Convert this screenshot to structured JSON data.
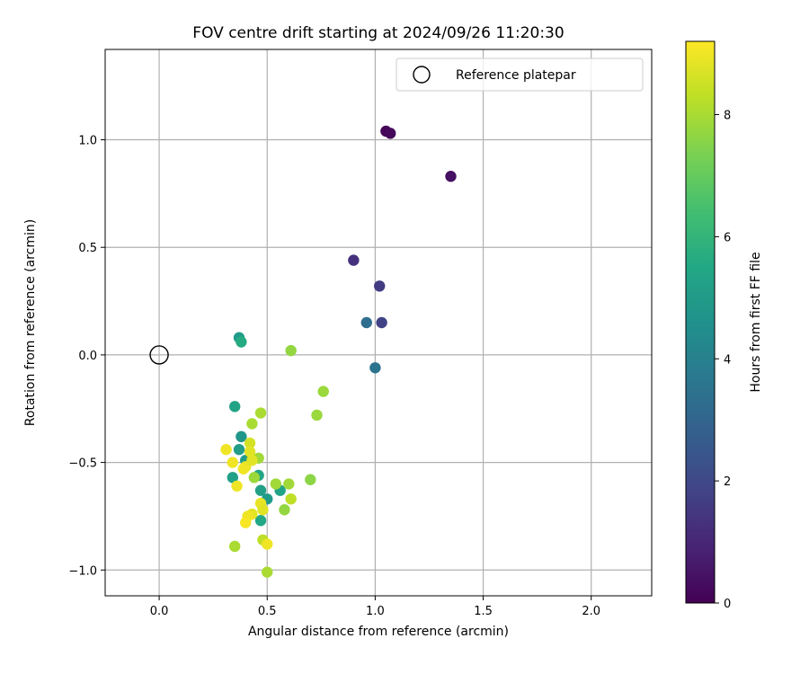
{
  "chart_data": {
    "type": "scatter",
    "title": "FOV centre drift starting at 2024/09/26 11:20:30",
    "xlabel": "Angular distance from reference (arcmin)",
    "ylabel": "Rotation from reference (arcmin)",
    "xlim": [
      -0.25,
      2.28
    ],
    "ylim": [
      -1.12,
      1.42
    ],
    "xticks": [
      0.0,
      0.5,
      1.0,
      1.5,
      2.0
    ],
    "xtick_labels": [
      "0.0",
      "0.5",
      "1.0",
      "1.5",
      "2.0"
    ],
    "yticks": [
      -1.0,
      -0.5,
      0.0,
      0.5,
      1.0
    ],
    "ytick_labels": [
      "−1.0",
      "−0.5",
      "0.0",
      "0.5",
      "1.0"
    ],
    "grid": true,
    "legend": {
      "position": "top-right",
      "entries": [
        "Reference platepar"
      ]
    },
    "reference_point": {
      "x": 0.0,
      "y": 0.0,
      "label": "Reference platepar"
    },
    "colorbar": {
      "label": "Hours from first FF file",
      "colormap": "viridis",
      "range": [
        0,
        9.2
      ],
      "ticks": [
        0,
        2,
        4,
        6,
        8
      ],
      "tick_labels": [
        "0",
        "2",
        "4",
        "6",
        "8"
      ]
    },
    "points": [
      {
        "x": 1.05,
        "y": 1.04,
        "hours": 0.1
      },
      {
        "x": 1.07,
        "y": 1.03,
        "hours": 0.2
      },
      {
        "x": 1.35,
        "y": 0.83,
        "hours": 0.4
      },
      {
        "x": 0.9,
        "y": 0.44,
        "hours": 1.3
      },
      {
        "x": 1.02,
        "y": 0.32,
        "hours": 1.6
      },
      {
        "x": 1.03,
        "y": 0.15,
        "hours": 1.8
      },
      {
        "x": 0.96,
        "y": 0.15,
        "hours": 3.3
      },
      {
        "x": 1.0,
        "y": -0.06,
        "hours": 3.5
      },
      {
        "x": 0.37,
        "y": 0.08,
        "hours": 5.0
      },
      {
        "x": 0.38,
        "y": 0.06,
        "hours": 5.6
      },
      {
        "x": 0.35,
        "y": -0.24,
        "hours": 5.3
      },
      {
        "x": 0.38,
        "y": -0.38,
        "hours": 4.8
      },
      {
        "x": 0.37,
        "y": -0.44,
        "hours": 5.1
      },
      {
        "x": 0.4,
        "y": -0.49,
        "hours": 5.0
      },
      {
        "x": 0.46,
        "y": -0.56,
        "hours": 5.4
      },
      {
        "x": 0.34,
        "y": -0.57,
        "hours": 5.2
      },
      {
        "x": 0.47,
        "y": -0.63,
        "hours": 5.2
      },
      {
        "x": 0.5,
        "y": -0.67,
        "hours": 5.0
      },
      {
        "x": 0.56,
        "y": -0.63,
        "hours": 5.3
      },
      {
        "x": 0.47,
        "y": -0.77,
        "hours": 5.5
      },
      {
        "x": 0.61,
        "y": 0.02,
        "hours": 7.7
      },
      {
        "x": 0.76,
        "y": -0.17,
        "hours": 7.8
      },
      {
        "x": 0.73,
        "y": -0.28,
        "hours": 7.8
      },
      {
        "x": 0.47,
        "y": -0.27,
        "hours": 8.0
      },
      {
        "x": 0.43,
        "y": -0.32,
        "hours": 8.0
      },
      {
        "x": 0.7,
        "y": -0.58,
        "hours": 7.6
      },
      {
        "x": 0.54,
        "y": -0.6,
        "hours": 7.9
      },
      {
        "x": 0.6,
        "y": -0.6,
        "hours": 7.9
      },
      {
        "x": 0.61,
        "y": -0.67,
        "hours": 8.3
      },
      {
        "x": 0.58,
        "y": -0.72,
        "hours": 7.7
      },
      {
        "x": 0.44,
        "y": -0.57,
        "hours": 7.8
      },
      {
        "x": 0.46,
        "y": -0.48,
        "hours": 7.9
      },
      {
        "x": 0.42,
        "y": -0.41,
        "hours": 8.6
      },
      {
        "x": 0.42,
        "y": -0.45,
        "hours": 8.8
      },
      {
        "x": 0.31,
        "y": -0.44,
        "hours": 9.0
      },
      {
        "x": 0.34,
        "y": -0.5,
        "hours": 9.0
      },
      {
        "x": 0.4,
        "y": -0.52,
        "hours": 8.9
      },
      {
        "x": 0.39,
        "y": -0.53,
        "hours": 9.0
      },
      {
        "x": 0.43,
        "y": -0.49,
        "hours": 8.8
      },
      {
        "x": 0.36,
        "y": -0.61,
        "hours": 9.0
      },
      {
        "x": 0.43,
        "y": -0.74,
        "hours": 8.8
      },
      {
        "x": 0.41,
        "y": -0.75,
        "hours": 9.0
      },
      {
        "x": 0.4,
        "y": -0.78,
        "hours": 9.1
      },
      {
        "x": 0.47,
        "y": -0.69,
        "hours": 8.9
      },
      {
        "x": 0.48,
        "y": -0.72,
        "hours": 8.8
      },
      {
        "x": 0.35,
        "y": -0.89,
        "hours": 8.0
      },
      {
        "x": 0.48,
        "y": -0.86,
        "hours": 8.3
      },
      {
        "x": 0.5,
        "y": -0.88,
        "hours": 9.0
      },
      {
        "x": 0.5,
        "y": -1.01,
        "hours": 8.0
      }
    ]
  }
}
